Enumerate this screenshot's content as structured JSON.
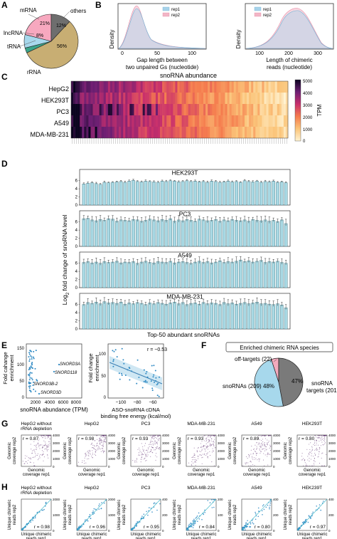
{
  "panel_labels": {
    "A": "A",
    "B": "B",
    "C": "C",
    "D": "D",
    "E": "E",
    "F": "F",
    "G": "G",
    "H": "H"
  },
  "colors": {
    "mrna": "#f7a8bf",
    "others": "#6e6e6e",
    "lncrna": "#a7d8ec",
    "trna": "#3aa58a",
    "rrna": "#c8ae73",
    "rep1": "#a8d3ea",
    "rep2": "#f2b6c6",
    "bar": "#a9d9e4",
    "scatter_g": "#5b2a6e",
    "scatter_h": "#2f8ac4",
    "line_h": "#3fb8c8",
    "enrich_sno": "#a7d8ec",
    "enrich_off": "#f4aabd",
    "enrich_tar": "#7a7a7a"
  },
  "panelA": {
    "labels": {
      "mrna": "mRNA",
      "others": "others",
      "lncrna": "lncRNA",
      "trna": "tRNA",
      "rrna": "rRNA"
    },
    "pcts": {
      "mrna": "21%",
      "others": "12%",
      "lncrna": "8%",
      "rrna": "56%"
    }
  },
  "panelB": {
    "ylabel": "Density",
    "left_xlabel_1": "Gap length between",
    "left_xlabel_2": "two unpaired Gs (nucleotide)",
    "right_xlabel_1": "Length of chimeric",
    "right_xlabel_2": "reads (nucleotide)",
    "legend": [
      "rep1",
      "rep2"
    ],
    "left_ticks": [
      "0",
      "50",
      "100"
    ],
    "right_ticks": [
      "100",
      "200",
      "300"
    ]
  },
  "panelC": {
    "title": "snoRNA abundance",
    "cell_lines": [
      "HepG2",
      "HEK293T",
      "PC3",
      "A549",
      "MDA-MB-231"
    ],
    "colorbar_label": "TPM",
    "colorbar_ticks": [
      "5000",
      "4000",
      "3000",
      "2000",
      "1000",
      "0"
    ]
  },
  "panelD": {
    "ylabel_main": "Log",
    "ylabel_sub": "2",
    "ylabel_rest": " fold change of snoRNA level",
    "xlabel": "Top-50 abundant snoRNAs",
    "subpanels": [
      {
        "title": "HEK293T",
        "ticks": [
          "0",
          "2",
          "4",
          "6"
        ],
        "values": [
          5.2,
          5.4,
          5.5,
          5.3,
          5.1,
          5.6,
          5.5,
          5.6,
          5.7,
          5.8,
          5.6,
          5.9,
          6.1,
          5.8,
          5.7,
          5.9,
          5.8,
          5.7,
          5.6,
          5.9,
          5.8,
          6.0,
          5.9,
          5.7,
          5.8,
          6.0,
          5.8,
          5.9,
          5.7,
          5.8,
          5.6,
          5.9,
          5.8,
          5.6,
          5.7,
          5.9,
          5.7,
          5.8,
          5.6,
          6.0,
          5.8,
          5.7,
          5.9,
          5.6,
          5.8,
          5.7,
          5.9,
          5.6,
          5.7,
          5.5
        ]
      },
      {
        "title": "PC3",
        "ticks": [
          "0",
          "2",
          "4",
          "6"
        ],
        "values": [
          6.8,
          6.9,
          6.5,
          6.3,
          6.6,
          6.4,
          6.8,
          6.7,
          6.2,
          6.5,
          6.4,
          6.3,
          6.6,
          6.5,
          6.2,
          6.4,
          6.7,
          6.5,
          6.3,
          6.6,
          6.4,
          6.8,
          6.2,
          6.5,
          6.3,
          6.6,
          6.4,
          6.2,
          6.7,
          6.5,
          6.3,
          6.4,
          6.6,
          6.2,
          6.5,
          6.3,
          6.6,
          6.4,
          6.3,
          6.5,
          6.2,
          6.6,
          6.4,
          6.3,
          6.5,
          6.2,
          6.4,
          6.1,
          6.5,
          5.6
        ]
      },
      {
        "title": "A549",
        "ticks": [
          "0",
          "2",
          "4",
          "6"
        ],
        "values": [
          6.2,
          6.4,
          6.1,
          6.3,
          6.0,
          6.4,
          6.2,
          6.3,
          6.5,
          6.1,
          6.3,
          6.2,
          6.4,
          6.0,
          6.3,
          6.5,
          6.2,
          6.1,
          6.4,
          6.3,
          6.2,
          6.5,
          6.1,
          6.3,
          6.4,
          6.2,
          6.0,
          6.3,
          6.5,
          6.2,
          6.4,
          6.1,
          6.3,
          6.6,
          6.2,
          6.4,
          6.3,
          6.5,
          6.8,
          6.4,
          6.6,
          6.3,
          6.5,
          6.7,
          6.2,
          6.4,
          6.3,
          6.5,
          6.2,
          6.0
        ]
      },
      {
        "title": "MDA-MB-231",
        "ticks": [
          "0",
          "2",
          "4",
          "6"
        ],
        "values": [
          6.0,
          6.5,
          6.3,
          6.6,
          6.2,
          6.7,
          6.4,
          6.5,
          6.3,
          6.6,
          6.1,
          6.4,
          6.2,
          6.5,
          6.3,
          6.0,
          6.4,
          6.2,
          6.5,
          6.3,
          6.1,
          6.4,
          6.6,
          6.2,
          6.5,
          6.0,
          6.3,
          6.4,
          6.1,
          6.5,
          6.2,
          6.4,
          6.3,
          6.0,
          6.5,
          6.2,
          6.4,
          6.1,
          6.3,
          6.5,
          6.2,
          6.4,
          6.6,
          6.2,
          6.3,
          6.1,
          6.0,
          6.2,
          5.9,
          5.2
        ]
      }
    ]
  },
  "panelE": {
    "left_ylabel_1": "Fold cahange",
    "left_ylabel_2": "enrichment",
    "left_xlabel": "snoRNA abundance (TPM)",
    "left_xticks": [
      "2000",
      "4000",
      "6000",
      "8000"
    ],
    "left_yticks": [
      "0",
      "50",
      "100",
      "150"
    ],
    "annotations": [
      "SNORD3A",
      "SNORD118",
      "SNORD3B-2",
      "SNORD3D"
    ],
    "right_ylabel_1": "Fold change",
    "right_ylabel_2": "enrichment",
    "right_xlabel_1": "ASO-snoRNA cDNA",
    "right_xlabel_2": "binding free energy (kcal/mol)",
    "right_xticks": [
      "−100",
      "−80",
      "−60"
    ],
    "right_yticks": [
      "0",
      "50",
      "100"
    ],
    "r_value": "r = −0.53"
  },
  "panelF": {
    "title": "Enriched chimeric RNA species",
    "off_label": "off-targets (22)",
    "sno_label": "snoRNAs (209)",
    "sno_pct": "48%",
    "tar_pct": "47%",
    "tar_label_1": "snoRNA",
    "tar_label_2": "targets (201)"
  },
  "panelG": {
    "ylabel_1": "Genomic",
    "ylabel_2": "coverage rep2",
    "xlabel_1": "Genomic",
    "xlabel_2": "coverage rep1",
    "ticks": [
      "0",
      "1000",
      "2000",
      "3000",
      "4000"
    ],
    "panels": [
      {
        "title": "HepG2 without",
        "title_2": "rRNA depletion",
        "r": "r = 0.87"
      },
      {
        "title": "HepG2",
        "title_2": "",
        "r": "r = 0.98"
      },
      {
        "title": "PC3",
        "title_2": "",
        "r": "r = 0.93"
      },
      {
        "title": "MDA-MB-231",
        "title_2": "",
        "r": "r = 0.93"
      },
      {
        "title": "A549",
        "title_2": "",
        "r": "r = 0.89"
      },
      {
        "title": "HEK293T",
        "title_2": "",
        "r": "r = 0.80"
      }
    ]
  },
  "panelH": {
    "ylabel_1": "Unique chimeric",
    "ylabel_2": "reads rep2",
    "xlabel_1": "Unique chimeric",
    "xlabel_2": "reads rep1",
    "panels": [
      {
        "title": "HepG2 without",
        "title_2": "rRNA depletion",
        "r": "r = 0.98",
        "ticks": [
          "0",
          "1000",
          "2000"
        ]
      },
      {
        "title": "HepG2",
        "title_2": "",
        "r": "r = 0.96",
        "ticks": [
          "0",
          "1000",
          "2000"
        ]
      },
      {
        "title": "PC3",
        "title_2": "",
        "r": "r = 0.95",
        "ticks": [
          "0",
          "200",
          "400"
        ]
      },
      {
        "title": "MDA-MB-231",
        "title_2": "",
        "r": "r = 0.84",
        "ticks": [
          "0",
          "100",
          "200"
        ]
      },
      {
        "title": "A549",
        "title_2": "",
        "r": "r = 0.80",
        "ticks": [
          "0",
          "200",
          "400"
        ]
      },
      {
        "title": "HEK239T",
        "title_2": "",
        "r": "r = 0.97",
        "ticks": [
          "0",
          "200",
          "400"
        ]
      }
    ]
  }
}
